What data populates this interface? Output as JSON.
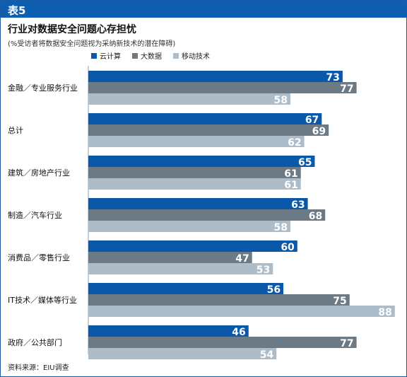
{
  "header": {
    "table_label": "表5"
  },
  "title": "行业对数据安全问题心存担忧",
  "subtitle": "(%受访者将数据安全问题视为采纳新技术的潜在障碍)",
  "source": "资料来源：EIU调查",
  "colors": {
    "banner": "#0f5fb1",
    "cloud": "#0c58a8",
    "bigdata": "#6c7a86",
    "mobile": "#adbcc9"
  },
  "chart_data": {
    "type": "bar",
    "orientation": "horizontal",
    "title": "行业对数据安全问题心存担忧",
    "subtitle": "(%受访者将数据安全问题视为采纳新技术的潜在障碍)",
    "categories": [
      "金融／专业服务行业",
      "总计",
      "建筑／房地产行业",
      "制造／汽车行业",
      "消费品／零售行业",
      "IT技术／媒体等行业",
      "政府／公共部门"
    ],
    "series": [
      {
        "name": "云计算",
        "color": "#0c58a8",
        "values": [
          73,
          67,
          65,
          63,
          60,
          56,
          46
        ]
      },
      {
        "name": "大数据",
        "color": "#6c7a86",
        "values": [
          77,
          69,
          61,
          68,
          47,
          75,
          77
        ]
      },
      {
        "name": "移动技术",
        "color": "#adbcc9",
        "values": [
          58,
          62,
          61,
          58,
          53,
          88,
          54
        ]
      }
    ],
    "xlim": [
      0,
      100
    ],
    "legend_position": "top",
    "grid": false,
    "data_labels": true
  }
}
